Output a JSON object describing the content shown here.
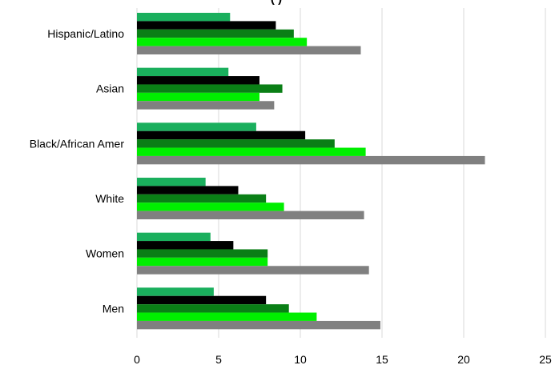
{
  "chart_data": {
    "type": "bar",
    "orientation": "horizontal",
    "title_fragment": "(                    )",
    "categories": [
      "Hispanic/Latino",
      "Asian",
      "Black/African Amer",
      "White",
      "Women",
      "Men"
    ],
    "series": [
      {
        "color": "#1aaf5d",
        "values": [
          5.7,
          5.6,
          7.3,
          4.2,
          4.5,
          4.7
        ]
      },
      {
        "color": "#000000",
        "values": [
          8.5,
          7.5,
          10.3,
          6.2,
          5.9,
          7.9
        ]
      },
      {
        "color": "#0a7f16",
        "values": [
          9.6,
          8.9,
          12.1,
          7.9,
          8.0,
          9.3
        ]
      },
      {
        "color": "#00ee00",
        "values": [
          10.4,
          7.5,
          14.0,
          9.0,
          8.0,
          11.0
        ]
      },
      {
        "color": "#808080",
        "values": [
          13.7,
          8.4,
          21.3,
          13.9,
          14.2,
          14.9
        ]
      }
    ],
    "xlim": [
      0,
      25
    ],
    "x_ticks": [
      "0",
      "5",
      "10",
      "15",
      "20",
      "25"
    ],
    "grid": true,
    "legend": "none"
  }
}
